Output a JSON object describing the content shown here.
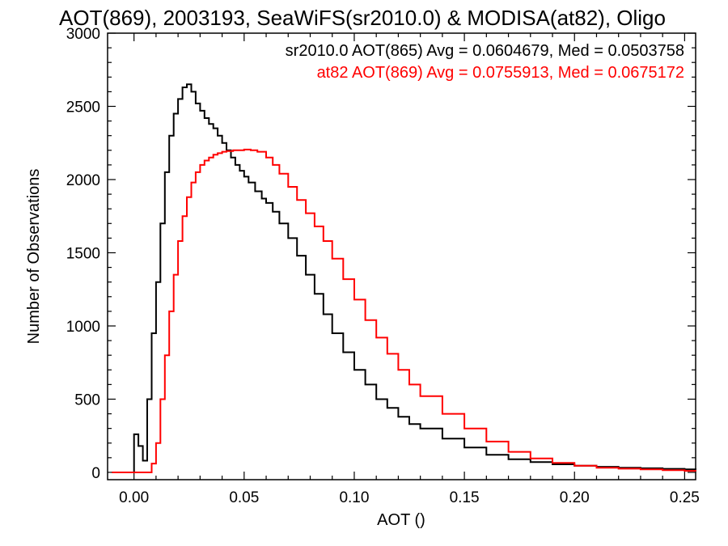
{
  "chart_data": {
    "type": "line",
    "title": "AOT(869), 2003193, SeaWiFS(sr2010.0) & MODISA(at82), Oligo",
    "xlabel": "AOT ()",
    "ylabel": "Number of Observations",
    "xlim": [
      -0.012,
      0.255
    ],
    "ylim": [
      -50,
      3000
    ],
    "xticks": [
      0.0,
      0.05,
      0.1,
      0.15,
      0.2,
      0.25
    ],
    "xtick_labels": [
      "0.00",
      "0.05",
      "0.10",
      "0.15",
      "0.20",
      "0.25"
    ],
    "yticks": [
      0,
      500,
      1000,
      1500,
      2000,
      2500,
      3000
    ],
    "ytick_labels": [
      "0",
      "500",
      "1000",
      "1500",
      "2000",
      "2500",
      "3000"
    ],
    "grid": false,
    "legend": [
      {
        "text": "sr2010.0 AOT(865) Avg = 0.0604679, Med = 0.0503758",
        "color": "#000000"
      },
      {
        "text": "at82 AOT(869) Avg = 0.0755913, Med = 0.0675172",
        "color": "#ff0000"
      }
    ],
    "series": [
      {
        "color": "#000000",
        "x": [
          -0.01,
          -0.002,
          0.0,
          0.002,
          0.004,
          0.006,
          0.008,
          0.01,
          0.012,
          0.014,
          0.016,
          0.018,
          0.02,
          0.022,
          0.024,
          0.026,
          0.028,
          0.03,
          0.032,
          0.034,
          0.036,
          0.038,
          0.04,
          0.042,
          0.044,
          0.046,
          0.048,
          0.05,
          0.052,
          0.055,
          0.058,
          0.06,
          0.063,
          0.066,
          0.07,
          0.074,
          0.078,
          0.082,
          0.086,
          0.09,
          0.095,
          0.1,
          0.105,
          0.11,
          0.115,
          0.12,
          0.125,
          0.13,
          0.14,
          0.15,
          0.16,
          0.17,
          0.18,
          0.19,
          0.2,
          0.21,
          0.22,
          0.23,
          0.24,
          0.25,
          0.255
        ],
        "values": [
          0,
          0,
          260,
          180,
          80,
          500,
          950,
          1300,
          1700,
          2050,
          2300,
          2450,
          2550,
          2630,
          2650,
          2600,
          2520,
          2470,
          2420,
          2380,
          2350,
          2300,
          2250,
          2200,
          2150,
          2100,
          2060,
          2020,
          1980,
          1920,
          1870,
          1840,
          1780,
          1700,
          1600,
          1480,
          1350,
          1220,
          1080,
          950,
          820,
          700,
          600,
          500,
          440,
          380,
          330,
          300,
          230,
          170,
          120,
          90,
          70,
          55,
          45,
          38,
          32,
          28,
          24,
          20,
          18
        ]
      },
      {
        "color": "#ff0000",
        "x": [
          -0.01,
          0.006,
          0.008,
          0.01,
          0.012,
          0.014,
          0.016,
          0.018,
          0.02,
          0.022,
          0.024,
          0.026,
          0.028,
          0.03,
          0.032,
          0.034,
          0.036,
          0.038,
          0.04,
          0.042,
          0.045,
          0.048,
          0.05,
          0.053,
          0.056,
          0.06,
          0.063,
          0.066,
          0.07,
          0.074,
          0.078,
          0.082,
          0.086,
          0.09,
          0.095,
          0.1,
          0.105,
          0.11,
          0.115,
          0.12,
          0.125,
          0.13,
          0.14,
          0.15,
          0.16,
          0.17,
          0.18,
          0.19,
          0.2,
          0.21,
          0.22,
          0.23,
          0.24,
          0.25,
          0.255
        ],
        "values": [
          0,
          0,
          60,
          200,
          500,
          800,
          1100,
          1350,
          1580,
          1750,
          1880,
          1980,
          2050,
          2100,
          2130,
          2150,
          2170,
          2180,
          2190,
          2195,
          2200,
          2200,
          2205,
          2200,
          2190,
          2150,
          2100,
          2040,
          1950,
          1860,
          1770,
          1680,
          1580,
          1460,
          1320,
          1180,
          1040,
          920,
          810,
          700,
          600,
          520,
          400,
          300,
          210,
          140,
          95,
          65,
          45,
          32,
          25,
          20,
          15,
          10,
          8
        ]
      }
    ]
  }
}
